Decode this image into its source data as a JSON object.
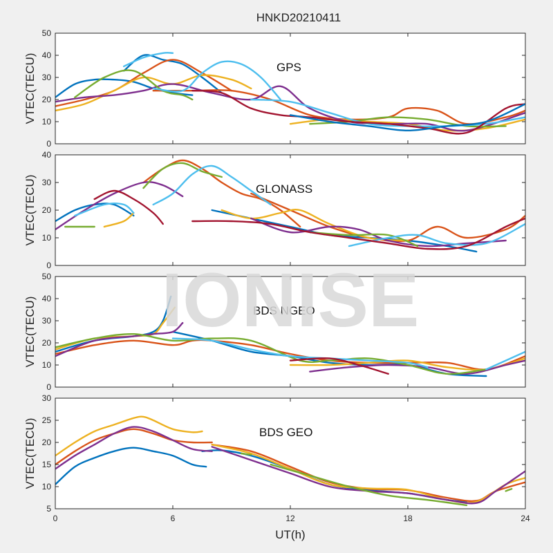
{
  "figure": {
    "title": "HNKD20210411",
    "watermark": "IONISE",
    "xlabel": "UT(h)",
    "xticks": [
      "0",
      "6",
      "12",
      "18",
      "24"
    ],
    "xlim": [
      0,
      24
    ]
  },
  "chart_data": [
    {
      "type": "line",
      "label": "GPS",
      "ylabel": "VTEC(TECU)",
      "ylim": [
        0,
        50
      ],
      "yticks": [
        "0",
        "10",
        "20",
        "30",
        "40",
        "50"
      ],
      "series": [
        {
          "color": "#0072BD",
          "x": [
            0,
            1,
            2,
            3,
            4,
            5,
            6,
            7
          ],
          "y": [
            21,
            27,
            29,
            29,
            28,
            25,
            23,
            22
          ]
        },
        {
          "color": "#0072BD",
          "x": [
            3.5,
            4.5,
            5.5,
            6.5,
            7.5,
            8.5
          ],
          "y": [
            33,
            40,
            38,
            36,
            30,
            23
          ]
        },
        {
          "color": "#D95319",
          "x": [
            0,
            1.5,
            3,
            4.5,
            6,
            7.5,
            9
          ],
          "y": [
            17,
            20,
            24,
            32,
            38,
            32,
            24
          ]
        },
        {
          "color": "#D95319",
          "x": [
            5,
            7,
            9,
            11,
            13,
            15,
            17,
            18,
            19.5,
            21,
            23,
            24
          ],
          "y": [
            24,
            24,
            24,
            20,
            13,
            11,
            12,
            16,
            15,
            9,
            12,
            15
          ]
        },
        {
          "color": "#EDB120",
          "x": [
            0,
            1.5,
            3,
            4.5,
            6,
            7.5,
            9,
            10
          ],
          "y": [
            15,
            18,
            24,
            30,
            27,
            31,
            29,
            25
          ]
        },
        {
          "color": "#EDB120",
          "x": [
            12,
            14,
            16,
            18,
            20,
            22,
            24
          ],
          "y": [
            9,
            11,
            10,
            9,
            6,
            7,
            11
          ]
        },
        {
          "color": "#7E2F8E",
          "x": [
            0,
            1.5,
            3,
            4.5,
            6,
            8,
            10,
            11.5,
            13,
            15,
            17,
            19,
            21,
            24
          ],
          "y": [
            19,
            21,
            22,
            24,
            27,
            23,
            20,
            26,
            16,
            10,
            9,
            9,
            6,
            14
          ]
        },
        {
          "color": "#77AC30",
          "x": [
            1,
            2.5,
            4,
            5.5,
            6.5,
            7
          ],
          "y": [
            21,
            30,
            33,
            24,
            22,
            20
          ]
        },
        {
          "color": "#77AC30",
          "x": [
            13,
            15,
            17,
            19,
            21,
            23
          ],
          "y": [
            9,
            10,
            12,
            11,
            8,
            8
          ]
        },
        {
          "color": "#4DBEEE",
          "x": [
            3.5,
            4.5,
            5.5,
            6
          ],
          "y": [
            35,
            39,
            41,
            41
          ]
        },
        {
          "color": "#4DBEEE",
          "x": [
            5,
            6.5,
            7.5,
            8.5,
            9.5,
            10.5,
            11.5
          ],
          "y": [
            25,
            24,
            32,
            37,
            36,
            30,
            20
          ]
        },
        {
          "color": "#4DBEEE",
          "x": [
            10,
            12,
            14,
            16,
            18,
            20,
            22,
            24
          ],
          "y": [
            20,
            19,
            14,
            9,
            8,
            8,
            9,
            12
          ]
        },
        {
          "color": "#A2142F",
          "x": [
            7,
            8.5,
            10,
            11.5,
            13,
            15,
            17,
            19,
            21,
            23,
            24
          ],
          "y": [
            24,
            23,
            16,
            13,
            12,
            10,
            9,
            7,
            5,
            16,
            18
          ]
        },
        {
          "color": "#0072BD",
          "x": [
            12,
            14,
            16,
            18,
            20,
            22,
            24
          ],
          "y": [
            13,
            10,
            8,
            6,
            8,
            10,
            18
          ]
        }
      ]
    },
    {
      "type": "line",
      "label": "GLONASS",
      "ylabel": "VTEC(TECU)",
      "ylim": [
        0,
        40
      ],
      "yticks": [
        "0",
        "10",
        "20",
        "30",
        "40"
      ],
      "series": [
        {
          "color": "#0072BD",
          "x": [
            0,
            1,
            2,
            3,
            4
          ],
          "y": [
            16,
            20,
            22,
            22,
            18
          ]
        },
        {
          "color": "#0072BD",
          "x": [
            8,
            10,
            12,
            14,
            16,
            18,
            20,
            21.5
          ],
          "y": [
            20,
            17,
            14,
            11,
            10,
            9,
            7,
            5
          ]
        },
        {
          "color": "#D95319",
          "x": [
            4.5,
            5.5,
            6.5,
            7.5,
            8.5,
            9.5,
            10.5,
            11.5,
            12.5
          ],
          "y": [
            30,
            35,
            38,
            35,
            30,
            26,
            24,
            20,
            14
          ]
        },
        {
          "color": "#D95319",
          "x": [
            10,
            12,
            14,
            16,
            18,
            19.5,
            21,
            23,
            24
          ],
          "y": [
            26,
            20,
            14,
            10,
            9,
            14,
            10,
            13,
            18
          ]
        },
        {
          "color": "#EDB120",
          "x": [
            2.5,
            3.5,
            4
          ],
          "y": [
            14,
            16,
            19
          ]
        },
        {
          "color": "#EDB120",
          "x": [
            8.5,
            10,
            11.5,
            12.5,
            14,
            16,
            18
          ],
          "y": [
            20,
            17,
            19,
            20,
            15,
            10,
            9
          ]
        },
        {
          "color": "#7E2F8E",
          "x": [
            0,
            1.5,
            3,
            4.5,
            5.5,
            6.5
          ],
          "y": [
            13,
            20,
            26,
            30,
            29,
            25
          ]
        },
        {
          "color": "#7E2F8E",
          "x": [
            10,
            12,
            14,
            15.5,
            17,
            19,
            21,
            23
          ],
          "y": [
            17,
            12,
            14,
            13,
            9,
            7,
            8,
            9
          ]
        },
        {
          "color": "#77AC30",
          "x": [
            0.5,
            1.5,
            2
          ],
          "y": [
            14,
            14,
            14
          ]
        },
        {
          "color": "#77AC30",
          "x": [
            4.5,
            5.5,
            6.5,
            7.5,
            8.5
          ],
          "y": [
            28,
            35,
            37,
            34,
            32
          ]
        },
        {
          "color": "#77AC30",
          "x": [
            13,
            15,
            17,
            18.5
          ],
          "y": [
            12,
            11,
            11,
            7
          ]
        },
        {
          "color": "#4DBEEE",
          "x": [
            1,
            2.5,
            3.5,
            4
          ],
          "y": [
            18,
            22,
            22,
            19
          ]
        },
        {
          "color": "#4DBEEE",
          "x": [
            5,
            6,
            7,
            8,
            9,
            10,
            11
          ],
          "y": [
            22,
            26,
            33,
            36,
            32,
            27,
            22
          ]
        },
        {
          "color": "#4DBEEE",
          "x": [
            15,
            17,
            18.5,
            20,
            22,
            24
          ],
          "y": [
            7,
            10,
            11,
            8,
            8,
            15
          ]
        },
        {
          "color": "#A2142F",
          "x": [
            2,
            3,
            4,
            5,
            5.5
          ],
          "y": [
            24,
            27,
            24,
            19,
            15
          ]
        },
        {
          "color": "#A2142F",
          "x": [
            7,
            9,
            11,
            13,
            15,
            17,
            19,
            21,
            23,
            24
          ],
          "y": [
            16,
            16,
            15,
            12,
            10,
            8,
            6,
            7,
            14,
            17
          ]
        }
      ]
    },
    {
      "type": "line",
      "label": "BDS NGEO",
      "ylabel": "VTEC(TECU)",
      "ylim": [
        0,
        50
      ],
      "yticks": [
        "0",
        "10",
        "20",
        "30",
        "40",
        "50"
      ],
      "series": [
        {
          "color": "#0072BD",
          "x": [
            0,
            2,
            4,
            5,
            5.5,
            5.9
          ],
          "y": [
            16,
            21,
            23,
            25,
            30,
            41
          ]
        },
        {
          "color": "#0072BD",
          "x": [
            6,
            8,
            10,
            12,
            14,
            16,
            18,
            20,
            22
          ],
          "y": [
            25,
            21,
            16,
            14,
            11,
            10,
            10,
            6,
            5
          ]
        },
        {
          "color": "#D95319",
          "x": [
            0,
            2,
            4,
            6,
            7,
            8,
            10,
            12,
            14,
            16,
            18,
            20,
            22,
            24
          ],
          "y": [
            15,
            19,
            21,
            19,
            21,
            21,
            19,
            15,
            12,
            11,
            11,
            11,
            8,
            14
          ]
        },
        {
          "color": "#EDB120",
          "x": [
            0,
            2,
            4,
            5,
            5.5,
            6.1
          ],
          "y": [
            17,
            22,
            23,
            24,
            29,
            36
          ]
        },
        {
          "color": "#EDB120",
          "x": [
            12,
            14,
            16,
            18,
            20,
            22,
            24
          ],
          "y": [
            10,
            10,
            11,
            12,
            9,
            8,
            13
          ]
        },
        {
          "color": "#7E2F8E",
          "x": [
            0,
            2,
            4,
            5,
            6,
            6.5
          ],
          "y": [
            14,
            21,
            23,
            24,
            25,
            29
          ]
        },
        {
          "color": "#7E2F8E",
          "x": [
            13,
            15,
            17,
            19,
            21,
            23,
            24
          ],
          "y": [
            7,
            9,
            10,
            9,
            6,
            10,
            12
          ]
        },
        {
          "color": "#77AC30",
          "x": [
            0,
            2,
            4,
            6,
            8,
            10,
            12.5,
            14,
            16,
            18,
            20,
            22
          ],
          "y": [
            18,
            22,
            24,
            21,
            22,
            21,
            12,
            12,
            13,
            10,
            6,
            8
          ]
        },
        {
          "color": "#4DBEEE",
          "x": [
            6,
            8,
            10,
            12,
            14,
            16,
            18,
            19
          ],
          "y": [
            22,
            21,
            17,
            14,
            13,
            12,
            11,
            9
          ]
        },
        {
          "color": "#4DBEEE",
          "x": [
            22,
            24
          ],
          "y": [
            8,
            16
          ]
        },
        {
          "color": "#A2142F",
          "x": [
            12,
            14,
            15.5,
            17
          ],
          "y": [
            12,
            13,
            10,
            6
          ]
        }
      ]
    },
    {
      "type": "line",
      "label": "BDS GEO",
      "ylabel": "VTEC(TECU)",
      "ylim": [
        5,
        30
      ],
      "yticks": [
        "5",
        "10",
        "15",
        "20",
        "25",
        "30"
      ],
      "series": [
        {
          "color": "#0072BD",
          "x": [
            0,
            1,
            2,
            3,
            4,
            5,
            6,
            7,
            7.7
          ],
          "y": [
            10.5,
            14.5,
            16.5,
            18,
            18.8,
            18,
            17,
            15,
            14.5
          ]
        },
        {
          "color": "#0072BD",
          "x": [
            7.5,
            8.5,
            10,
            12,
            14,
            16,
            18,
            20,
            21
          ],
          "y": [
            18,
            18.2,
            17,
            14,
            10.5,
            9.2,
            8.5,
            7,
            6.5
          ]
        },
        {
          "color": "#D95319",
          "x": [
            0,
            1,
            2,
            3,
            4,
            5,
            6,
            7,
            8
          ],
          "y": [
            15,
            18,
            20.5,
            22,
            23,
            22,
            20.5,
            20,
            20
          ]
        },
        {
          "color": "#D95319",
          "x": [
            8,
            10,
            12,
            14,
            16,
            18,
            20,
            21.5,
            22.5,
            24
          ],
          "y": [
            19.5,
            18,
            14.5,
            11,
            9.5,
            9.2,
            7.5,
            6.8,
            9,
            11
          ]
        },
        {
          "color": "#EDB120",
          "x": [
            0,
            1,
            2,
            3,
            4,
            4.5,
            5,
            6,
            7,
            7.5
          ],
          "y": [
            17,
            20,
            22.5,
            24,
            25.5,
            25.8,
            25,
            23,
            22.3,
            22.5
          ]
        },
        {
          "color": "#EDB120",
          "x": [
            8,
            10,
            12,
            14,
            16,
            18,
            20,
            21.5,
            23,
            24
          ],
          "y": [
            19.5,
            17.5,
            14,
            10.5,
            9.6,
            9.3,
            7,
            6.6,
            10.5,
            12
          ]
        },
        {
          "color": "#7E2F8E",
          "x": [
            0,
            1,
            2,
            3,
            4,
            5,
            6,
            7,
            8
          ],
          "y": [
            14,
            17,
            19.5,
            22,
            23.5,
            22.5,
            20.5,
            18.5,
            18
          ]
        },
        {
          "color": "#7E2F8E",
          "x": [
            8,
            10,
            12,
            14,
            16,
            18,
            20,
            21.5,
            22.5,
            24
          ],
          "y": [
            19,
            16,
            13,
            10,
            9,
            8.5,
            7,
            6.3,
            9,
            13.5
          ]
        },
        {
          "color": "#77AC30",
          "x": [
            9.5,
            10
          ],
          "y": [
            17.5,
            17.2
          ]
        },
        {
          "color": "#77AC30",
          "x": [
            11,
            13,
            15,
            17,
            19,
            21
          ],
          "y": [
            15,
            12.5,
            10,
            8,
            7,
            5.8
          ]
        },
        {
          "color": "#77AC30",
          "x": [
            23,
            23.3
          ],
          "y": [
            9,
            9.5
          ]
        }
      ]
    }
  ]
}
